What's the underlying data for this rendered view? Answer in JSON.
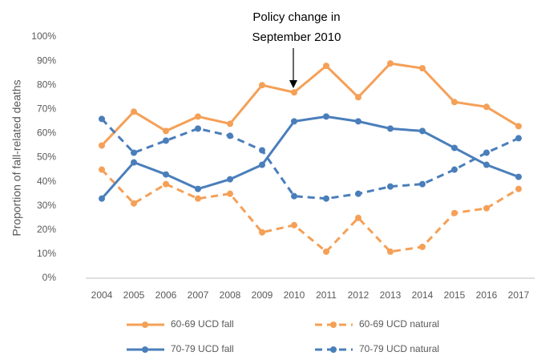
{
  "chart_data": {
    "type": "line",
    "y_label": "Proportion of fall-related deaths",
    "annotation": [
      "Policy change in",
      "September 2010"
    ],
    "categories": [
      "2004",
      "2005",
      "2006",
      "2007",
      "2008",
      "2009",
      "2010",
      "2011",
      "2012",
      "2013",
      "2014",
      "2015",
      "2016",
      "2017"
    ],
    "series": [
      {
        "name": "60-69 UCD fall",
        "color": "#f5a057",
        "dashed": false,
        "values": [
          55,
          69,
          61,
          67,
          64,
          80,
          77,
          88,
          75,
          89,
          87,
          73,
          71,
          63
        ]
      },
      {
        "name": "60-69 UCD natural",
        "color": "#f5a057",
        "dashed": true,
        "values": [
          45,
          31,
          39,
          33,
          35,
          19,
          22,
          11,
          25,
          11,
          13,
          27,
          29,
          37
        ]
      },
      {
        "name": "70-79 UCD fall",
        "color": "#4a7ebb",
        "dashed": false,
        "values": [
          33,
          48,
          43,
          37,
          41,
          47,
          65,
          67,
          65,
          62,
          61,
          54,
          47,
          42
        ]
      },
      {
        "name": "70-79 UCD natural",
        "color": "#4a7ebb",
        "dashed": true,
        "values": [
          66,
          52,
          57,
          62,
          59,
          53,
          34,
          33,
          35,
          38,
          39,
          45,
          52,
          58
        ]
      }
    ],
    "ylim": [
      0,
      100
    ],
    "yticks": [
      {
        "value": 0,
        "label": "0%"
      },
      {
        "value": 10,
        "label": "10%"
      },
      {
        "value": 20,
        "label": "20%"
      },
      {
        "value": 30,
        "label": "30%"
      },
      {
        "value": 40,
        "label": "40%"
      },
      {
        "value": 50,
        "label": "50%"
      },
      {
        "value": 60,
        "label": "60%"
      },
      {
        "value": 70,
        "label": "70%"
      },
      {
        "value": 80,
        "label": "80%"
      },
      {
        "value": 90,
        "label": "90%"
      },
      {
        "value": 100,
        "label": "100%"
      }
    ],
    "grid": false,
    "legend": "bottom"
  }
}
